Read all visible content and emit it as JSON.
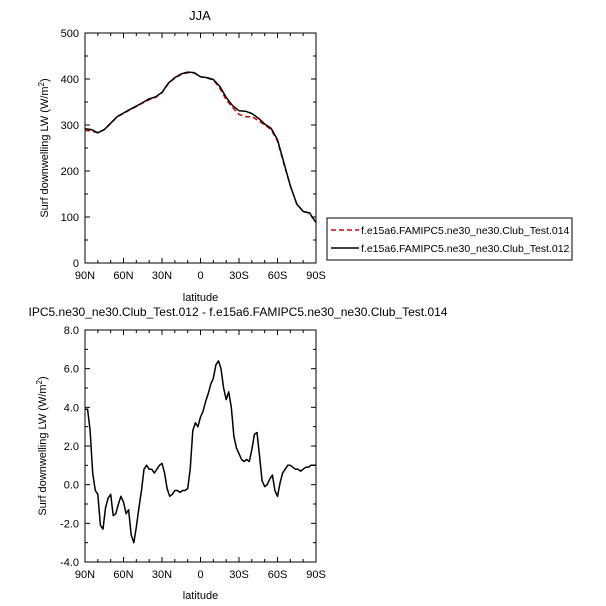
{
  "chart_data": [
    {
      "type": "line",
      "title": "JJA",
      "xlabel": "latitude",
      "ylabel": "Surf downwelling LW (W/m",
      "ylabel_sup": "2",
      "ylabel_close": ")",
      "xlim": [
        90,
        -90
      ],
      "ylim": [
        0,
        500
      ],
      "x_ticks": [
        90,
        60,
        30,
        0,
        -30,
        -60,
        -90
      ],
      "x_tick_labels": [
        "90N",
        "60N",
        "30N",
        "0",
        "30S",
        "60S",
        "90S"
      ],
      "y_ticks": [
        0,
        100,
        200,
        300,
        400,
        500
      ],
      "y_tick_labels": [
        "0",
        "100",
        "200",
        "300",
        "400",
        "500"
      ],
      "legend_position": "right",
      "x": [
        90,
        85,
        80,
        75,
        70,
        65,
        60,
        55,
        50,
        45,
        40,
        35,
        30,
        25,
        20,
        15,
        10,
        5,
        0,
        -5,
        -10,
        -15,
        -20,
        -25,
        -30,
        -35,
        -40,
        -45,
        -50,
        -55,
        -60,
        -65,
        -70,
        -75,
        -80,
        -85,
        -90
      ],
      "series": [
        {
          "name": "f.e15a6.FAMIPC5.ne30_ne30.Club_Test.014",
          "color": "#d40000",
          "dash": true,
          "values": [
            288,
            287,
            283,
            290,
            303,
            318,
            325,
            333,
            340,
            348,
            355,
            360,
            370,
            390,
            402,
            410,
            414,
            413,
            405,
            402,
            398,
            380,
            355,
            338,
            323,
            318,
            318,
            310,
            300,
            290,
            265,
            215,
            168,
            128,
            112,
            108,
            88
          ]
        },
        {
          "name": "f.e15a6.FAMIPC5.ne30_ne30.Club_Test.012",
          "color": "#000000",
          "dash": false,
          "values": [
            292,
            290,
            283,
            290,
            304,
            318,
            326,
            334,
            341,
            349,
            357,
            361,
            371,
            391,
            403,
            411,
            415,
            414,
            405,
            403,
            399,
            384,
            360,
            342,
            331,
            330,
            325,
            315,
            302,
            293,
            268,
            218,
            168,
            128,
            112,
            109,
            88
          ]
        }
      ]
    },
    {
      "type": "line",
      "title": "IPC5.ne30_ne30.Club_Test.012 - f.e15a6.FAMIPC5.ne30_ne30.Club_Test.014",
      "xlabel": "latitude",
      "ylabel": "Surf downwelling LW (W/m",
      "ylabel_sup": "2",
      "ylabel_close": ")",
      "xlim": [
        90,
        -90
      ],
      "ylim": [
        -4,
        8
      ],
      "x_ticks": [
        90,
        60,
        30,
        0,
        -30,
        -60,
        -90
      ],
      "x_tick_labels": [
        "90N",
        "60N",
        "30N",
        "0",
        "30S",
        "60S",
        "90S"
      ],
      "y_ticks": [
        -4,
        -2,
        0,
        2,
        4,
        6,
        8
      ],
      "y_tick_labels": [
        "-4.0",
        "-2.0",
        "0.0",
        "2.0",
        "4.0",
        "6.0",
        "8.0"
      ],
      "series": [
        {
          "color": "#000000",
          "x": [
            90,
            88,
            86,
            84,
            82,
            80,
            78,
            76,
            74,
            72,
            70,
            68,
            66,
            64,
            62,
            60,
            58,
            56,
            54,
            52,
            50,
            48,
            46,
            44,
            42,
            40,
            38,
            36,
            34,
            32,
            30,
            28,
            26,
            24,
            22,
            20,
            18,
            16,
            14,
            12,
            10,
            8,
            6,
            4,
            2,
            0,
            -2,
            -4,
            -6,
            -8,
            -10,
            -12,
            -14,
            -16,
            -18,
            -20,
            -22,
            -24,
            -26,
            -28,
            -30,
            -32,
            -34,
            -36,
            -38,
            -40,
            -42,
            -44,
            -46,
            -48,
            -50,
            -52,
            -54,
            -56,
            -58,
            -60,
            -62,
            -64,
            -66,
            -68,
            -70,
            -72,
            -74,
            -76,
            -78,
            -80,
            -82,
            -84,
            -86,
            -88,
            -90
          ],
          "values": [
            3.9,
            3.9,
            2.8,
            0.6,
            -0.3,
            -0.5,
            -2.1,
            -2.3,
            -1.2,
            -0.7,
            -0.5,
            -1.6,
            -1.5,
            -1.0,
            -0.6,
            -0.9,
            -1.5,
            -1.3,
            -2.6,
            -3.0,
            -2.2,
            -1.2,
            -0.3,
            0.8,
            1.0,
            0.8,
            0.8,
            0.6,
            0.8,
            1.0,
            1.1,
            0.6,
            -0.2,
            -0.6,
            -0.5,
            -0.3,
            -0.3,
            -0.4,
            -0.3,
            -0.3,
            -0.2,
            0.8,
            2.8,
            3.2,
            3.0,
            3.5,
            3.8,
            4.3,
            4.7,
            5.2,
            5.5,
            6.2,
            6.4,
            6.0,
            5.0,
            4.4,
            4.8,
            4.0,
            2.5,
            1.9,
            1.6,
            1.3,
            1.2,
            1.3,
            1.2,
            1.8,
            2.6,
            2.7,
            1.5,
            0.2,
            -0.1,
            0.0,
            0.3,
            0.5,
            -0.3,
            -0.6,
            0.1,
            0.6,
            0.8,
            1.0,
            1.0,
            0.9,
            0.8,
            0.8,
            0.7,
            0.8,
            0.9,
            0.9,
            1.0,
            1.0,
            1.0
          ]
        }
      ]
    }
  ]
}
